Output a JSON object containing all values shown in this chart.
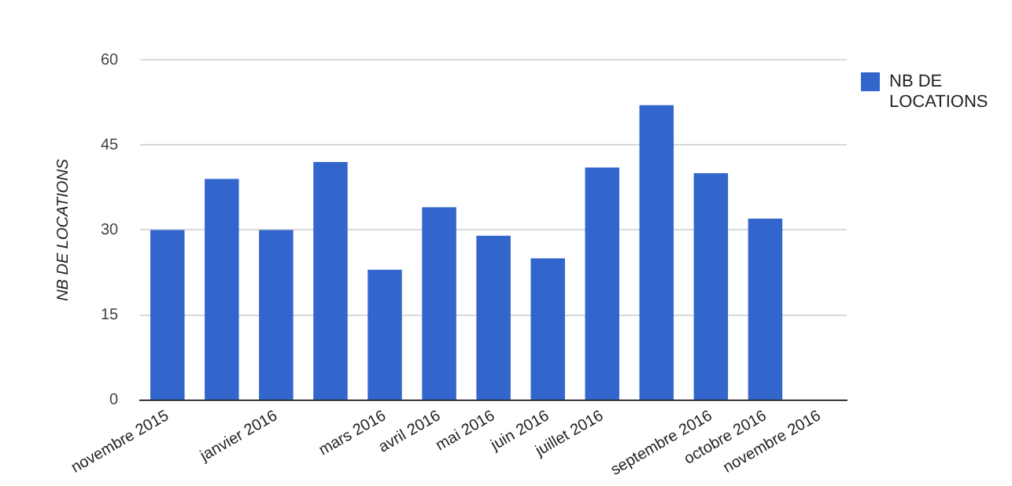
{
  "chart_data": {
    "type": "bar",
    "ylabel": "NB DE LOCATIONS",
    "categories": [
      "novembre 2015",
      null,
      "janvier 2016",
      null,
      "mars 2016",
      "avril 2016",
      "mai 2016",
      "juin 2016",
      "juillet 2016",
      null,
      "septembre 2016",
      "octobre 2016",
      "novembre 2016"
    ],
    "series": [
      {
        "name": "NB DE LOCATIONS",
        "color": "#3366cc",
        "values": [
          30,
          39,
          30,
          42,
          23,
          34,
          29,
          25,
          41,
          52,
          40,
          32,
          null
        ]
      }
    ],
    "ylim": [
      0,
      60
    ],
    "yticks": [
      0,
      15,
      30,
      45,
      60
    ],
    "grid": "y",
    "legend": "right"
  }
}
